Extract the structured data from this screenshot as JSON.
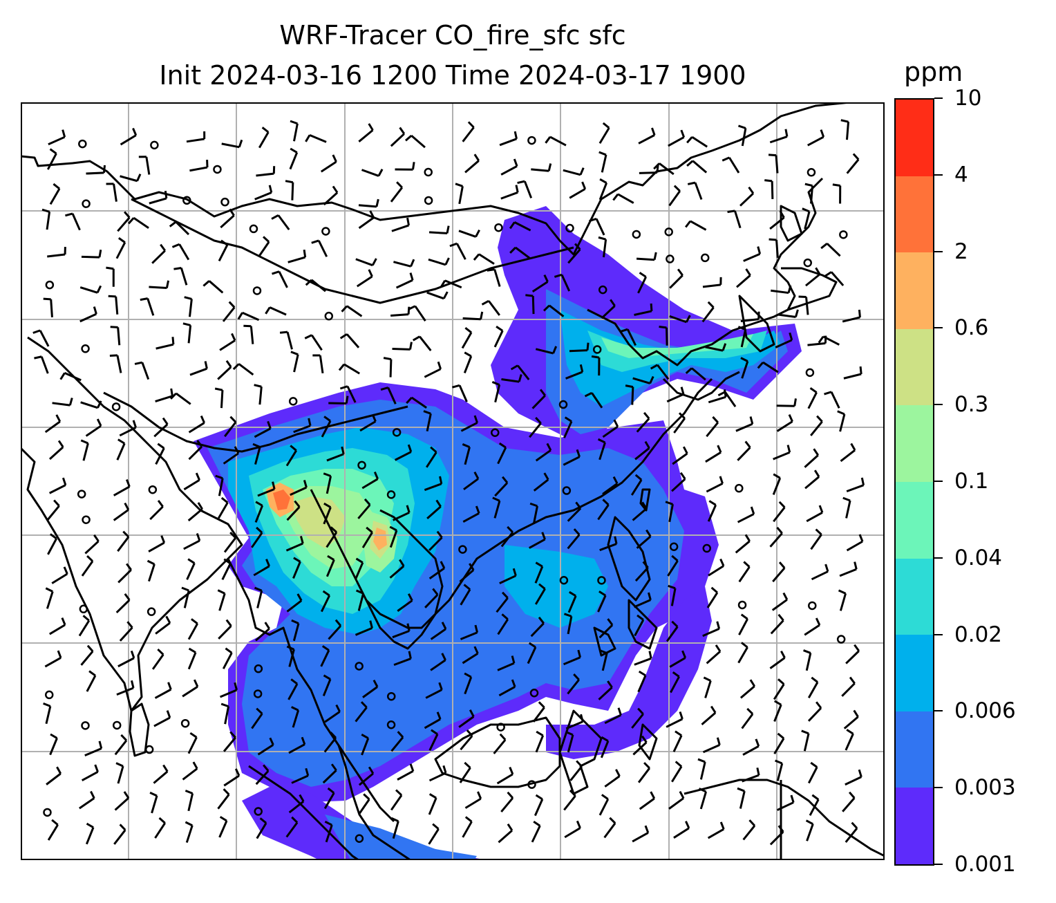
{
  "title": {
    "line1": "WRF-Tracer CO_fire_sfc sfc",
    "line2": "Init 2024-03-16 1200 Time 2024-03-17 1900"
  },
  "colorbar": {
    "units": "ppm",
    "levels": [
      "0.001",
      "0.003",
      "0.006",
      "0.02",
      "0.04",
      "0.1",
      "0.3",
      "0.6",
      "2",
      "4",
      "10"
    ],
    "colors": [
      "#5e2bfb",
      "#3175f2",
      "#00b0ec",
      "#2ddbd6",
      "#6cf5b9",
      "#9cf59e",
      "#cde185",
      "#feb15f",
      "#ff7239",
      "#ff2d17"
    ]
  },
  "map": {
    "gridlines": true,
    "grid_color": "#b0b0b0",
    "coastline_color": "#000000",
    "wind_barb_color": "#000000"
  }
}
